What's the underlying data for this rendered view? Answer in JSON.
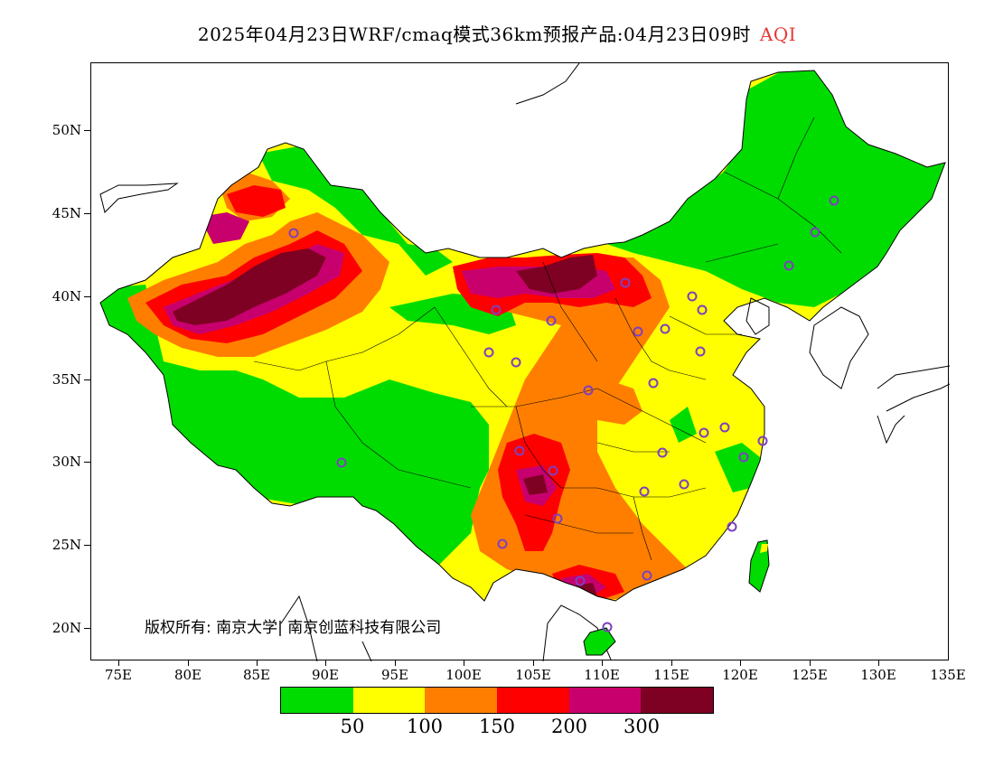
{
  "title": {
    "main": "2025年04月23日WRF/cmaq模式36km预报产品:04月23日09时",
    "pollutant": "AQI"
  },
  "axes": {
    "lat_labels": [
      "50N",
      "45N",
      "40N",
      "35N",
      "30N",
      "25N",
      "20N"
    ],
    "lon_labels": [
      "75E",
      "80E",
      "85E",
      "90E",
      "95E",
      "100E",
      "105E",
      "110E",
      "115E",
      "120E",
      "125E",
      "130E",
      "135E"
    ]
  },
  "copyright": "版权所有: 南京大学| 南京创蓝科技有限公司",
  "legend": {
    "colors": [
      "#00dc00",
      "#ffff00",
      "#ff7e00",
      "#ff0000",
      "#c8006e",
      "#7e0023"
    ],
    "labels": [
      "50",
      "100",
      "150",
      "200",
      "300"
    ]
  },
  "colors": {
    "good": "#00dc00",
    "moderate": "#ffff00",
    "sensitive": "#ff7e00",
    "unhealthy": "#ff0000",
    "very_unhealthy": "#c8006e",
    "hazardous": "#7e0023",
    "station_marker": "#7f3fbf"
  }
}
